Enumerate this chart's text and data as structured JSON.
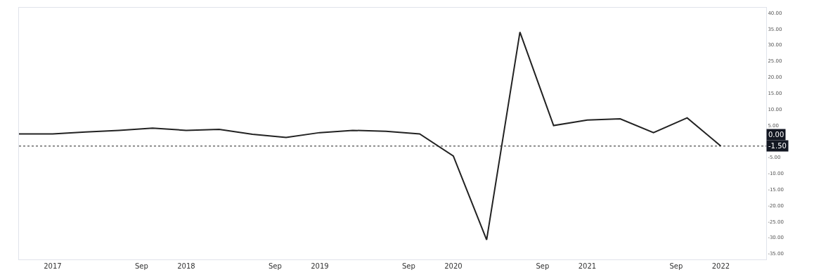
{
  "chart_data": {
    "type": "line",
    "x": [
      "2016-10-01",
      "2017-01-01",
      "2017-04-01",
      "2017-07-01",
      "2017-10-01",
      "2018-01-01",
      "2018-04-01",
      "2018-07-01",
      "2018-10-01",
      "2019-01-01",
      "2019-04-01",
      "2019-07-01",
      "2019-10-01",
      "2020-01-01",
      "2020-04-01",
      "2020-07-01",
      "2020-10-01",
      "2021-01-01",
      "2021-04-01",
      "2021-07-01",
      "2021-10-01",
      "2022-01-01"
    ],
    "series": [
      {
        "color": "#222222",
        "values": [
          2.3,
          2.3,
          2.9,
          3.4,
          4.1,
          3.4,
          3.7,
          2.2,
          1.2,
          2.7,
          3.4,
          3.1,
          2.3,
          -4.6,
          -30.7,
          34.0,
          4.9,
          6.6,
          7.0,
          2.7,
          7.3,
          -1.5
        ]
      }
    ],
    "xlim": [
      "2016-10-01",
      "2022-05-05"
    ],
    "xticks": [
      {
        "value": "2017-01-01",
        "label": "2017"
      },
      {
        "value": "2017-09-01",
        "label": "Sep"
      },
      {
        "value": "2018-01-01",
        "label": "2018"
      },
      {
        "value": "2018-09-01",
        "label": "Sep"
      },
      {
        "value": "2019-01-01",
        "label": "2019"
      },
      {
        "value": "2019-09-01",
        "label": "Sep"
      },
      {
        "value": "2020-01-01",
        "label": "2020"
      },
      {
        "value": "2020-09-01",
        "label": "Sep"
      },
      {
        "value": "2021-01-01",
        "label": "2021"
      },
      {
        "value": "2021-09-01",
        "label": "Sep"
      },
      {
        "value": "2022-01-01",
        "label": "2022"
      }
    ],
    "ylim": [
      -36.8,
      41.6
    ],
    "yticks": [
      {
        "value": 40,
        "label": "40.00"
      },
      {
        "value": 35,
        "label": "35.00"
      },
      {
        "value": 30,
        "label": "30.00"
      },
      {
        "value": 25,
        "label": "25.00"
      },
      {
        "value": 20,
        "label": "20.00"
      },
      {
        "value": 15,
        "label": "15.00"
      },
      {
        "value": 10,
        "label": "10.00"
      },
      {
        "value": 5,
        "label": "5.00"
      },
      {
        "value": -5,
        "label": "-5.00"
      },
      {
        "value": -10,
        "label": "-10.00"
      },
      {
        "value": -15,
        "label": "-15.00"
      },
      {
        "value": -20,
        "label": "-20.00"
      },
      {
        "value": -25,
        "label": "-25.00"
      },
      {
        "value": -30,
        "label": "-30.00"
      },
      {
        "value": -35,
        "label": "-35.00"
      }
    ],
    "ref_lines": [
      {
        "axis": "y",
        "value": -1.5,
        "label": "-1.50",
        "color": "#222222",
        "line_style": "dotted"
      }
    ],
    "annotations": [
      "0.00"
    ],
    "legend": false,
    "marker": "none",
    "line_style": "solid"
  }
}
